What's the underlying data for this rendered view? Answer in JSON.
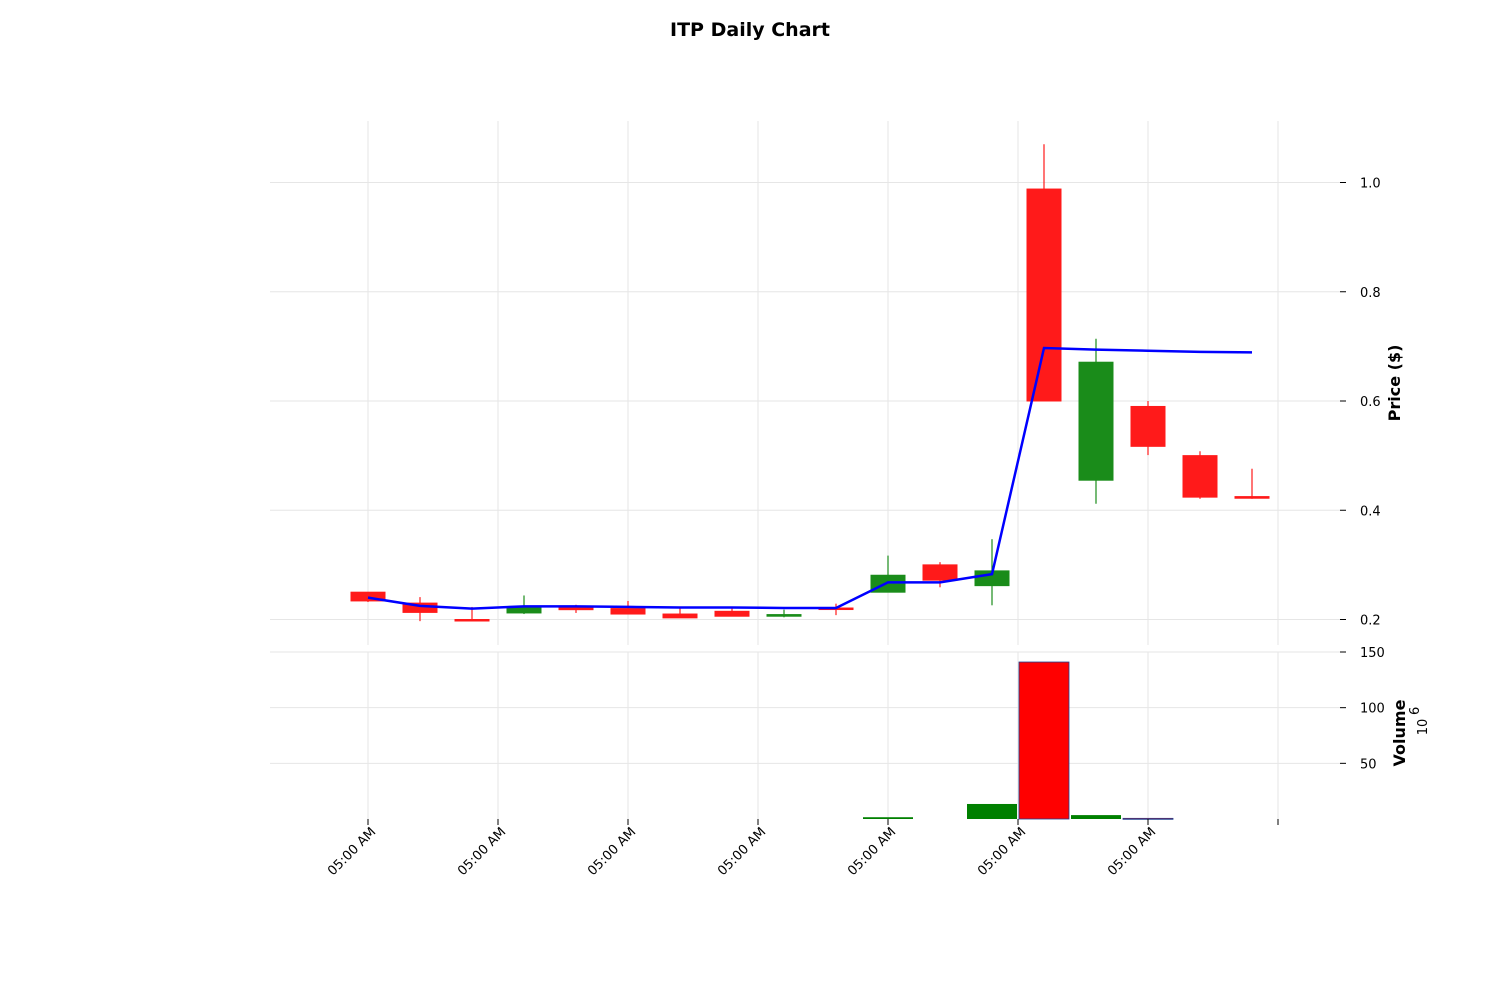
{
  "chart_data": {
    "type": "candlestick",
    "title": "ITP Daily Chart",
    "price_axis": {
      "label": "Price ($)",
      "ylim": [
        0.19,
        1.11
      ],
      "ticks": [
        0.2,
        0.4,
        0.6,
        0.8,
        1.0
      ],
      "tick_labels": [
        "0.2",
        "0.4",
        "0.6",
        "0.8",
        "1.0"
      ]
    },
    "volume_axis": {
      "label": "Volume",
      "multiplier": "10",
      "exponent": "6",
      "ylim": [
        0,
        150
      ],
      "ticks": [
        50,
        100,
        150
      ],
      "tick_labels": [
        "50",
        "100",
        "150"
      ]
    },
    "x_tick_labels": [
      "05:00 AM",
      "05:00 AM",
      "05:00 AM",
      "05:00 AM",
      "05:00 AM",
      "05:00 AM",
      "05:00 AM"
    ],
    "up_color": "#1a8c1a",
    "down_color": "#ff1a1a",
    "ma_color": "#0000ff",
    "volume_up_color": "#008000",
    "volume_down_color": "#ff0000",
    "grid": true,
    "candles": [
      {
        "o": 0.25,
        "h": 0.25,
        "l": 0.232,
        "c": 0.234,
        "v": 0
      },
      {
        "o": 0.23,
        "h": 0.241,
        "l": 0.197,
        "c": 0.213,
        "v": 0
      },
      {
        "o": 0.2,
        "h": 0.223,
        "l": 0.2,
        "c": 0.199,
        "v": 0
      },
      {
        "o": 0.212,
        "h": 0.244,
        "l": 0.21,
        "c": 0.222,
        "v": 0
      },
      {
        "o": 0.223,
        "h": 0.227,
        "l": 0.212,
        "c": 0.218,
        "v": 0
      },
      {
        "o": 0.22,
        "h": 0.234,
        "l": 0.21,
        "c": 0.21,
        "v": 0
      },
      {
        "o": 0.21,
        "h": 0.223,
        "l": 0.204,
        "c": 0.203,
        "v": 0
      },
      {
        "o": 0.215,
        "h": 0.222,
        "l": 0.206,
        "c": 0.206,
        "v": 0
      },
      {
        "o": 0.206,
        "h": 0.218,
        "l": 0.204,
        "c": 0.209,
        "v": 0
      },
      {
        "o": 0.221,
        "h": 0.229,
        "l": 0.208,
        "c": 0.22,
        "v": 0
      },
      {
        "o": 0.25,
        "h": 0.317,
        "l": 0.25,
        "c": 0.281,
        "v": 1.6
      },
      {
        "o": 0.3,
        "h": 0.305,
        "l": 0.259,
        "c": 0.272,
        "v": 0
      },
      {
        "o": 0.262,
        "h": 0.347,
        "l": 0.226,
        "c": 0.289,
        "v": 13.5
      },
      {
        "o": 0.988,
        "h": 1.07,
        "l": 0.6,
        "c": 0.6,
        "v": 141
      },
      {
        "o": 0.455,
        "h": 0.714,
        "l": 0.412,
        "c": 0.671,
        "v": 3.5
      },
      {
        "o": 0.59,
        "h": 0.6,
        "l": 0.501,
        "c": 0.517,
        "v": 0.6
      },
      {
        "o": 0.5,
        "h": 0.508,
        "l": 0.421,
        "c": 0.424,
        "v": 0
      },
      {
        "o": 0.425,
        "h": 0.476,
        "l": 0.421,
        "c": 0.422,
        "v": 0
      }
    ],
    "moving_average": [
      {
        "i": 0,
        "y": 0.24
      },
      {
        "i": 1,
        "y": 0.225
      },
      {
        "i": 2,
        "y": 0.22
      },
      {
        "i": 3,
        "y": 0.224
      },
      {
        "i": 4,
        "y": 0.224
      },
      {
        "i": 5,
        "y": 0.223
      },
      {
        "i": 6,
        "y": 0.222
      },
      {
        "i": 7,
        "y": 0.222
      },
      {
        "i": 8,
        "y": 0.221
      },
      {
        "i": 9,
        "y": 0.221
      },
      {
        "i": 10,
        "y": 0.268
      },
      {
        "i": 11,
        "y": 0.268
      },
      {
        "i": 12,
        "y": 0.283
      },
      {
        "i": 13,
        "y": 0.697
      },
      {
        "i": 14,
        "y": 0.694
      },
      {
        "i": 15,
        "y": 0.692
      },
      {
        "i": 16,
        "y": 0.69
      },
      {
        "i": 17,
        "y": 0.689
      }
    ]
  }
}
